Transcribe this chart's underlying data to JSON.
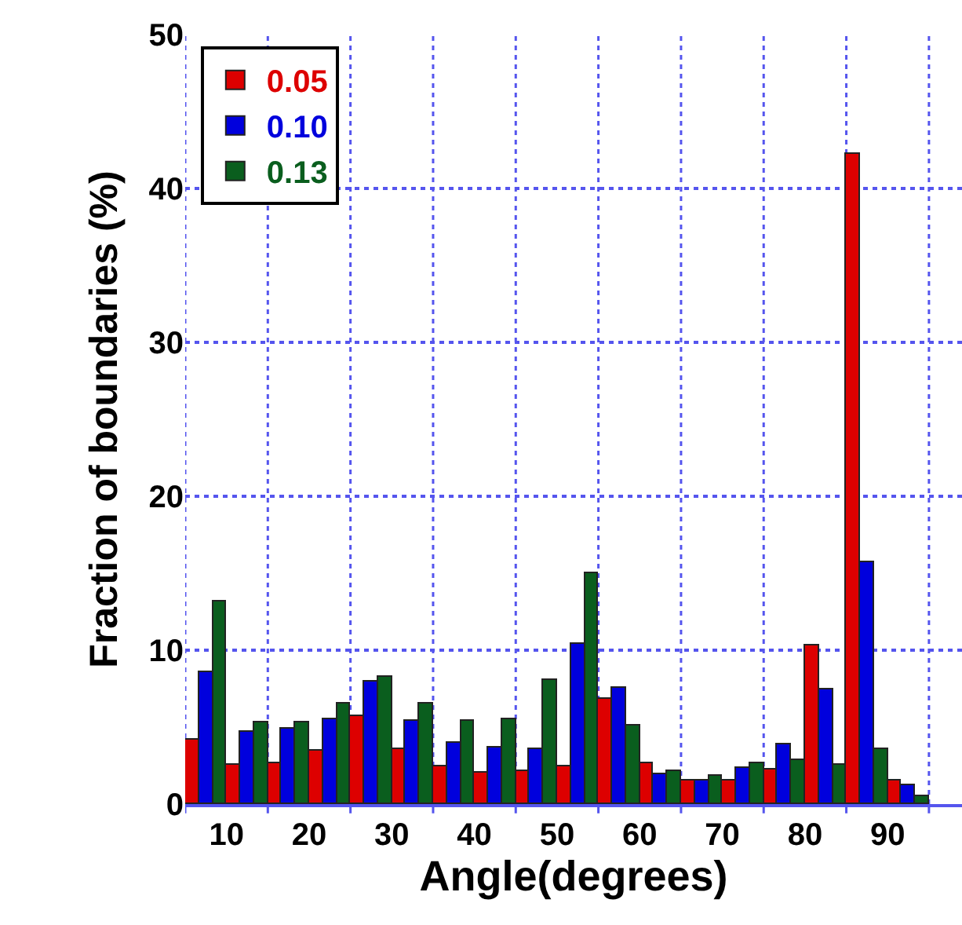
{
  "chart_data": {
    "type": "bar",
    "xlabel": "Angle(degrees)",
    "ylabel": "Fraction of boundaries (%)",
    "x": [
      7.5,
      12.5,
      17.5,
      22.5,
      27.5,
      32.5,
      37.5,
      42.5,
      47.5,
      52.5,
      57.5,
      62.5,
      67.5,
      72.5,
      77.5,
      82.5,
      87.5,
      92.5
    ],
    "series": [
      {
        "name": "0.05",
        "color": "#dd0000",
        "values": [
          4.2,
          2.6,
          2.7,
          3.5,
          5.7,
          3.6,
          2.5,
          2.0,
          2.1,
          2.4,
          6.8,
          2.7,
          1.5,
          1.5,
          2.2,
          10.3,
          42.2,
          1.5
        ]
      },
      {
        "name": "0.10",
        "color": "#0000dd",
        "values": [
          8.6,
          4.7,
          4.9,
          5.5,
          8.0,
          5.4,
          4.0,
          3.7,
          3.6,
          10.4,
          7.6,
          1.9,
          1.5,
          2.3,
          3.9,
          7.4,
          15.7,
          1.2
        ]
      },
      {
        "name": "0.13",
        "color": "#0a5e1e",
        "values": [
          13.2,
          5.3,
          5.3,
          6.5,
          8.3,
          6.5,
          5.4,
          5.5,
          8.1,
          15.0,
          5.1,
          2.1,
          1.8,
          2.7,
          2.9,
          2.6,
          3.6,
          0.5
        ]
      }
    ],
    "xlim": [
      5,
      99
    ],
    "xticks": [
      {
        "value": 5,
        "label": null
      },
      10,
      {
        "value": 15,
        "label": null
      },
      20,
      {
        "value": 25,
        "label": null
      },
      30,
      {
        "value": 35,
        "label": null
      },
      40,
      {
        "value": 45,
        "label": null
      },
      50,
      {
        "value": 55,
        "label": null
      },
      60,
      {
        "value": 65,
        "label": null
      },
      70,
      {
        "value": 75,
        "label": null
      },
      80,
      {
        "value": 85,
        "label": null
      },
      90,
      {
        "value": 95,
        "label": null
      }
    ],
    "ylim": [
      0,
      50
    ],
    "yticks": [
      0,
      10,
      20,
      30,
      40,
      50
    ],
    "grid": true,
    "legend": "top left"
  }
}
